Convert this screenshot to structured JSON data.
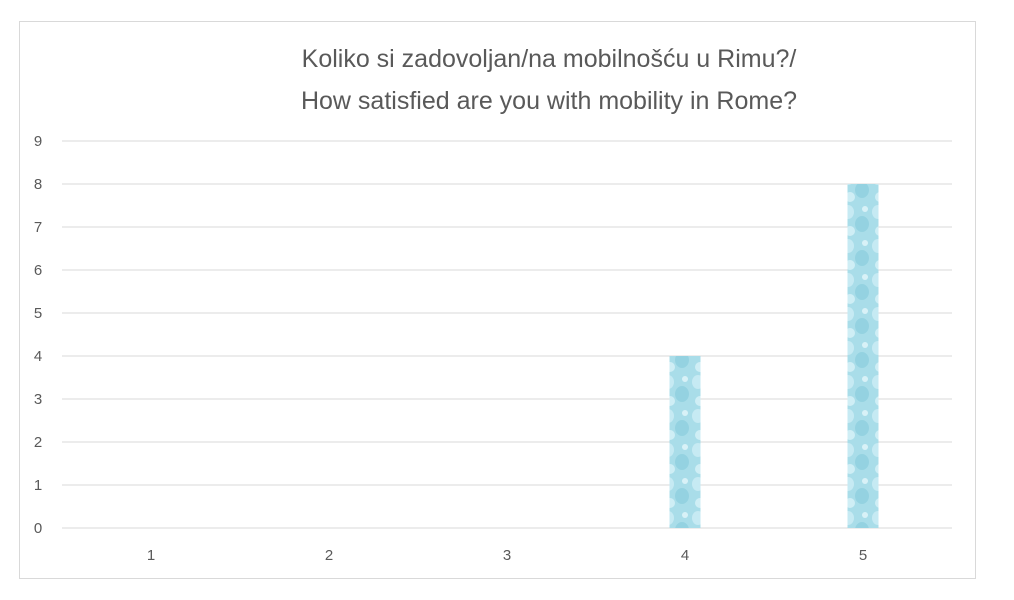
{
  "chart_data": {
    "type": "bar",
    "title": [
      "Koliko si zadovoljan/na mobilnošću u Rimu?/",
      "How satisfied are you with mobility in Rome?"
    ],
    "categories": [
      "1",
      "2",
      "3",
      "4",
      "5"
    ],
    "values": [
      0,
      0,
      0,
      4,
      8
    ],
    "xlabel": "",
    "ylabel": "",
    "ylim": [
      0,
      9
    ],
    "yticks": [
      "0",
      "1",
      "2",
      "3",
      "4",
      "5",
      "6",
      "7",
      "8",
      "9"
    ],
    "grid": true,
    "legend": "none",
    "colors": {
      "bar": "#a9dde9",
      "bar_highlight": "#d6f1f7",
      "grid": "#d9d9d9",
      "text": "#595959"
    }
  }
}
